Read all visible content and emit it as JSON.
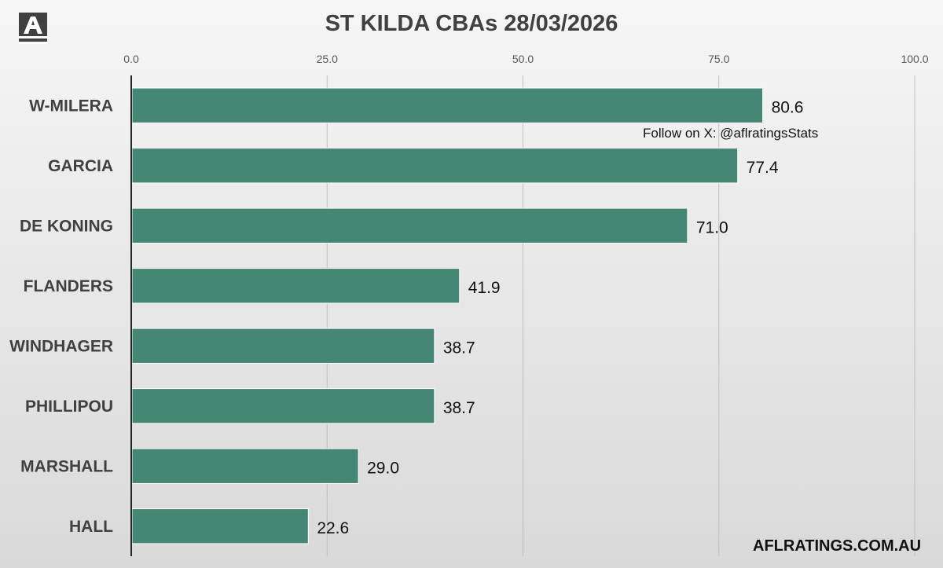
{
  "header": {
    "logo_letter": "A",
    "title": "ST KILDA CBAs 28/03/2026"
  },
  "watermark": {
    "follow_text": "Follow on X: @aflratingsStats",
    "site": "AFLRATINGS.COM.AU"
  },
  "chart_data": {
    "type": "bar",
    "orientation": "horizontal",
    "title": "ST KILDA CBAs 28/03/2026",
    "categories": [
      "W-MILERA",
      "GARCIA",
      "DE KONING",
      "FLANDERS",
      "WINDHAGER",
      "PHILLIPOU",
      "MARSHALL",
      "HALL"
    ],
    "values": [
      80.6,
      77.4,
      71.0,
      41.9,
      38.7,
      38.7,
      29.0,
      22.6
    ],
    "value_labels": [
      "80.6",
      "77.4",
      "71.0",
      "41.9",
      "38.7",
      "38.7",
      "29.0",
      "22.6"
    ],
    "xticks": [
      0,
      25,
      50,
      75,
      100
    ],
    "xtick_labels": [
      "0.0",
      "25.0",
      "50.0",
      "75.0",
      "100.0"
    ],
    "xlim": [
      0,
      100
    ],
    "xaxis_position": "top",
    "grid": true,
    "bar_color": "#458774"
  }
}
